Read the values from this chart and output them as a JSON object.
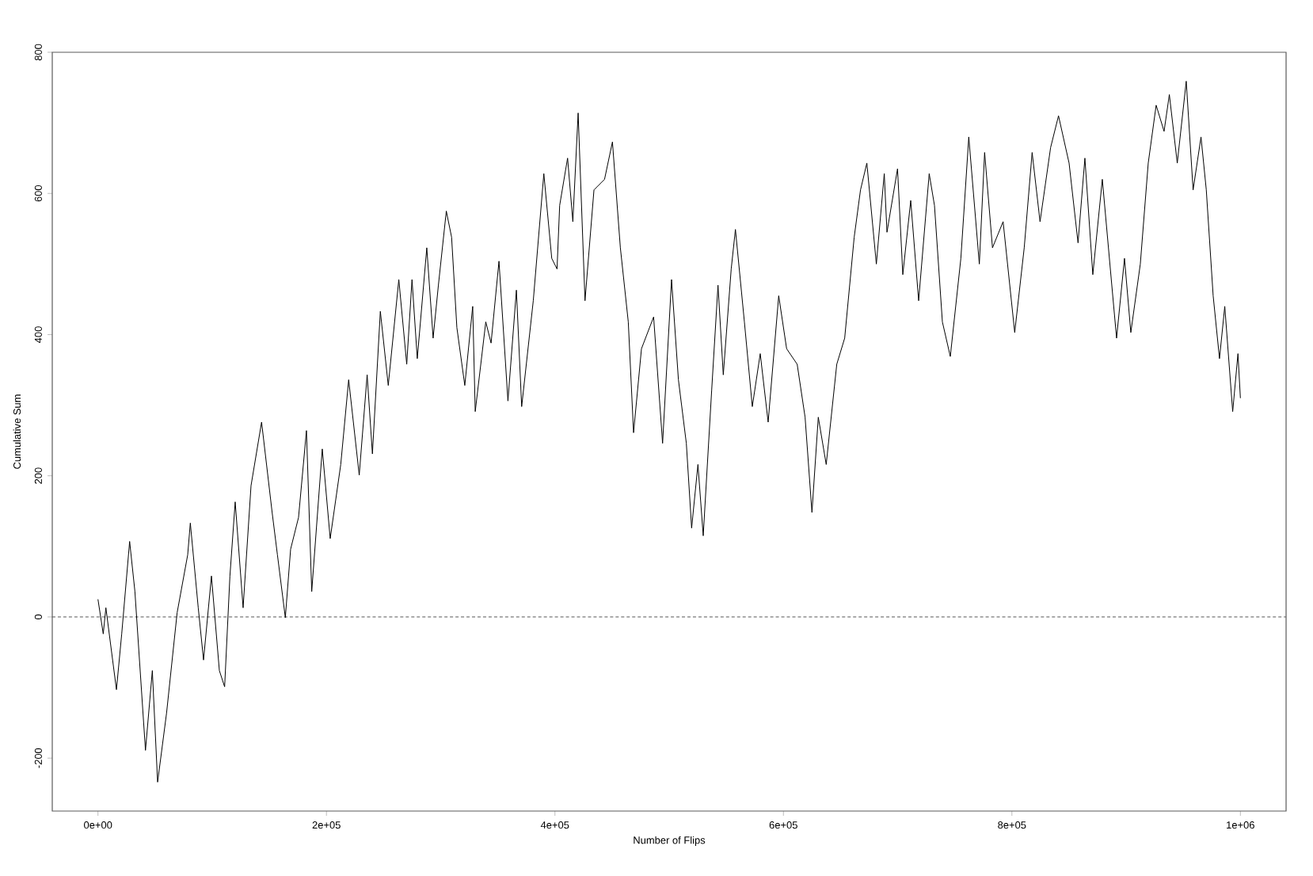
{
  "chart_data": {
    "type": "line",
    "xlabel": "Number of Flips",
    "ylabel": "Cumulative Sum",
    "xlim": [
      -40000,
      1040000
    ],
    "ylim": [
      -275,
      800
    ],
    "xticks": [
      {
        "value": 0,
        "label": "0e+00"
      },
      {
        "value": 200000,
        "label": "2e+05"
      },
      {
        "value": 400000,
        "label": "4e+05"
      },
      {
        "value": 600000,
        "label": "6e+05"
      },
      {
        "value": 800000,
        "label": "8e+05"
      },
      {
        "value": 1000000,
        "label": "1e+06"
      }
    ],
    "yticks": [
      -200,
      0,
      200,
      400,
      600,
      800
    ],
    "grid": false,
    "marker": "none",
    "ref_lines": [
      {
        "axis": "y",
        "value": 0,
        "line_style": "dashed",
        "color": "#555555"
      }
    ],
    "series": [
      {
        "color": "#000000",
        "line_style": "solid",
        "x": [
          0,
          4620,
          6930,
          16170,
          20790,
          27720,
          32340,
          41580,
          47590,
          52210,
          60060,
          69300,
          78540,
          80850,
          87780,
          92400,
          99330,
          106260,
          110880,
          115500,
          120120,
          127050,
          133980,
          143220,
          152460,
          157080,
          164010,
          168630,
          175560,
          182490,
          187110,
          196350,
          203280,
          212520,
          219450,
          228690,
          235620,
          240240,
          247170,
          254100,
          263340,
          270270,
          274890,
          279510,
          287826,
          293370,
          297990,
          304920,
          309540,
          314160,
          321090,
          328020,
          330230,
          339470,
          344090,
          351020,
          358870,
          366260,
          370880,
          381040,
          390280,
          397210,
          401830,
          404140,
          411070,
          415690,
          420310,
          426320,
          434170,
          443410,
          450340,
          457270,
          464200,
          468820,
          475750,
          486380,
          494230,
          502080,
          508090,
          515020,
          519640,
          525180,
          529800,
          537190,
          542740,
          547360,
          554290,
          557990,
          565840,
          572770,
          579700,
          586630,
          595870,
          602800,
          612040,
          618970,
          624980,
          630520,
          637450,
          646690,
          653620,
          661940,
          667480,
          673030,
          681340,
          688270,
          690640,
          699880,
          704500,
          711430,
          718360,
          727600,
          732220,
          739150,
          746080,
          755320,
          762250,
          771490,
          776110,
          782990,
          792290,
          802450,
          810770,
          817700,
          824630,
          833870,
          840800,
          850040,
          857890,
          863890,
          870820,
          879140,
          886990,
          891610,
          898540,
          904090,
          912400,
          919330,
          926260,
          933190,
          937810,
          944740,
          952590,
          958600,
          965530,
          970150,
          976160,
          981700,
          986320,
          993250,
          997870,
          1000000
        ],
        "values": [
          25,
          -24,
          13,
          -103,
          -24,
          107,
          36,
          -189,
          -76,
          -234,
          -136,
          6,
          88,
          133,
          13,
          -61,
          58,
          -76,
          -99,
          58,
          163,
          13,
          186,
          276,
          148,
          88,
          -1,
          96,
          141,
          264,
          36,
          238,
          111,
          216,
          336,
          201,
          343,
          231,
          433,
          328,
          478,
          358,
          478,
          366,
          523,
          395,
          470,
          575,
          538,
          410,
          328,
          440,
          291,
          418,
          388,
          504,
          306,
          463,
          298,
          448,
          628,
          508,
          493,
          583,
          650,
          560,
          714,
          448,
          605,
          620,
          673,
          523,
          418,
          261,
          380,
          425,
          246,
          478,
          336,
          246,
          126,
          216,
          115,
          321,
          470,
          343,
          493,
          549,
          418,
          298,
          373,
          276,
          455,
          380,
          358,
          283,
          148,
          283,
          216,
          358,
          395,
          538,
          605,
          643,
          500,
          628,
          545,
          635,
          485,
          590,
          448,
          628,
          583,
          418,
          369,
          508,
          680,
          500,
          658,
          523,
          560,
          403,
          523,
          658,
          560,
          665,
          710,
          643,
          530,
          650,
          485,
          620,
          478,
          395,
          508,
          403,
          500,
          643,
          725,
          688,
          740,
          643,
          759,
          605,
          680,
          605,
          455,
          366,
          440,
          291,
          373,
          310
        ]
      }
    ]
  }
}
